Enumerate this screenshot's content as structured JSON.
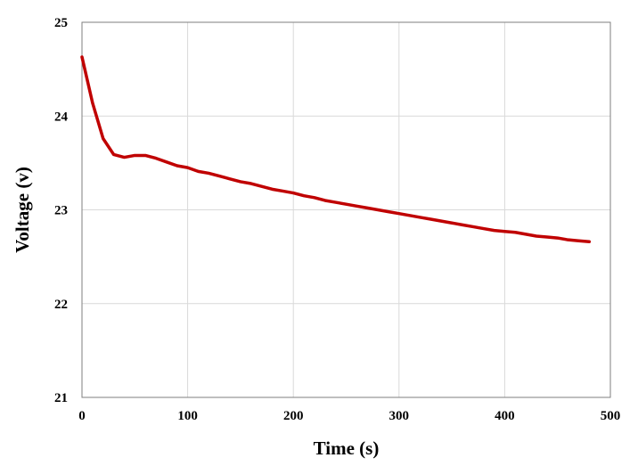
{
  "chart_data": {
    "type": "line",
    "title": "",
    "xlabel": "Time (s)",
    "ylabel": "Voltage (v)",
    "xlim": [
      0,
      500
    ],
    "ylim": [
      21,
      25
    ],
    "xticks": [
      0,
      100,
      200,
      300,
      400,
      500
    ],
    "yticks": [
      21,
      22,
      23,
      24,
      25
    ],
    "grid": true,
    "legend": "none",
    "series": [
      {
        "color": "#C00000",
        "x": [
          0,
          10,
          20,
          30,
          40,
          50,
          60,
          70,
          80,
          90,
          100,
          110,
          120,
          130,
          140,
          150,
          160,
          170,
          180,
          190,
          200,
          210,
          220,
          230,
          240,
          250,
          260,
          270,
          280,
          290,
          300,
          310,
          320,
          330,
          340,
          350,
          360,
          370,
          380,
          390,
          400,
          410,
          420,
          430,
          440,
          450,
          460,
          470,
          480
        ],
        "y": [
          24.63,
          24.14,
          23.76,
          23.59,
          23.56,
          23.58,
          23.58,
          23.55,
          23.51,
          23.47,
          23.45,
          23.41,
          23.39,
          23.36,
          23.33,
          23.3,
          23.28,
          23.25,
          23.22,
          23.2,
          23.18,
          23.15,
          23.13,
          23.1,
          23.08,
          23.06,
          23.04,
          23.02,
          23.0,
          22.98,
          22.96,
          22.94,
          22.92,
          22.9,
          22.88,
          22.86,
          22.84,
          22.82,
          22.8,
          22.78,
          22.77,
          22.76,
          22.74,
          22.72,
          22.71,
          22.7,
          22.68,
          22.67,
          22.66
        ]
      }
    ]
  }
}
